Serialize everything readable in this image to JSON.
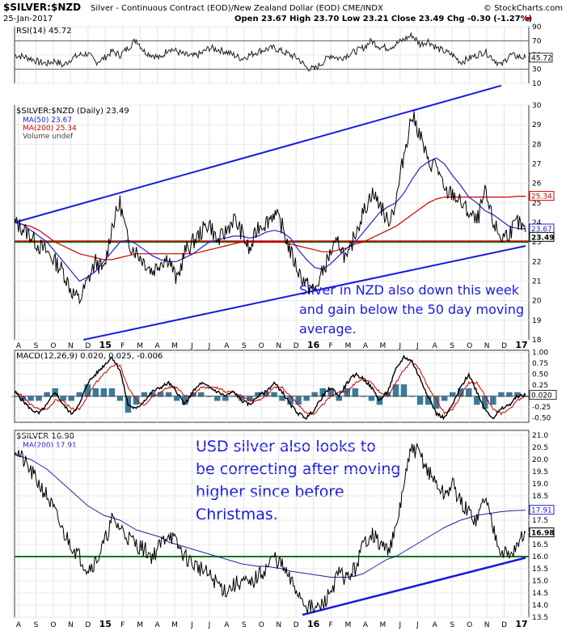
{
  "header": {
    "symbol": "$SILVER:$NZD",
    "description": "Silver - Continuous Contract (EOD)/New Zealand Dollar (EOD) CME/INDX",
    "source": "© StockCharts.com",
    "date": "25-Jan-2017",
    "quote": "Open 23.67  High 23.70  Low 23.21  Close 23.49  Chg -0.30 (-1.27%)"
  },
  "chart_data": [
    {
      "type": "line",
      "name": "rsi-panel",
      "label": "RSI(14) 45.72",
      "current": "45.72",
      "yticks": [
        "90",
        "70",
        "50",
        "30",
        "10"
      ],
      "ylim": [
        10,
        90
      ],
      "levels": [
        70,
        30
      ],
      "x": [
        0,
        10,
        20,
        30,
        40,
        50,
        60,
        70,
        80,
        90,
        100,
        110,
        120,
        130,
        140,
        150,
        160,
        170,
        180,
        190,
        200,
        210,
        220,
        230,
        240,
        250,
        260,
        270,
        280,
        290,
        300,
        310,
        320,
        330,
        340,
        350,
        360,
        370,
        380,
        390,
        400,
        410,
        420,
        430,
        440,
        450,
        460,
        470,
        480,
        490,
        500,
        510,
        520,
        530,
        540,
        550,
        560,
        570,
        580,
        590,
        600,
        610,
        620,
        630
      ],
      "values": [
        50,
        48,
        45,
        40,
        38,
        42,
        35,
        45,
        50,
        52,
        40,
        45,
        55,
        50,
        60,
        72,
        55,
        50,
        45,
        60,
        55,
        50,
        48,
        52,
        60,
        58,
        55,
        50,
        45,
        50,
        55,
        58,
        60,
        55,
        50,
        45,
        32,
        30,
        40,
        50,
        45,
        50,
        55,
        60,
        70,
        62,
        60,
        65,
        72,
        78,
        65,
        70,
        60,
        55,
        50,
        40,
        45,
        50,
        55,
        45,
        35,
        50,
        48,
        46
      ]
    },
    {
      "type": "line",
      "name": "silver-nzd-panel",
      "label": "$SILVER:$NZD (Daily) 23.49",
      "legend": [
        "MA(50) 23.67",
        "MA(200) 25.34",
        "Volume undef"
      ],
      "tag_ma200": "25.34",
      "tag_ma50": "23.67",
      "tag_last": "23.49",
      "yticks": [
        "30",
        "29",
        "28",
        "27",
        "26",
        "25",
        "24",
        "23",
        "22",
        "21",
        "20",
        "19",
        "18"
      ],
      "ylim": [
        18,
        30
      ],
      "annotation": [
        "Silver in NZD also down this week",
        "and gain below the 50 day moving",
        "average."
      ],
      "x": [
        0,
        10,
        20,
        30,
        40,
        50,
        60,
        70,
        80,
        90,
        100,
        110,
        120,
        130,
        140,
        150,
        160,
        170,
        180,
        190,
        200,
        210,
        220,
        230,
        240,
        250,
        260,
        270,
        280,
        290,
        300,
        310,
        320,
        330,
        340,
        350,
        360,
        370,
        380,
        390,
        400,
        410,
        420,
        430,
        440,
        450,
        460,
        470,
        480,
        490,
        500,
        510,
        520,
        530,
        540,
        550,
        560,
        570,
        580,
        590,
        600,
        610,
        620,
        630
      ],
      "close": [
        24.0,
        23.7,
        23.3,
        22.8,
        22.5,
        22.0,
        21.5,
        20.5,
        20.0,
        21.0,
        22.0,
        21.5,
        23.8,
        25.0,
        23.0,
        22.5,
        22.0,
        21.5,
        22.0,
        22.2,
        21.0,
        22.5,
        23.0,
        23.5,
        24.0,
        23.0,
        23.5,
        24.2,
        23.5,
        22.5,
        23.8,
        24.0,
        24.5,
        23.8,
        22.5,
        21.5,
        20.8,
        20.5,
        21.5,
        22.5,
        23.0,
        22.0,
        23.5,
        24.5,
        25.5,
        25.0,
        24.0,
        25.0,
        27.5,
        29.5,
        28.5,
        27.0,
        27.0,
        25.5,
        25.5,
        25.0,
        24.5,
        24.0,
        25.5,
        24.0,
        23.2,
        23.5,
        24.0,
        23.5
      ],
      "ma50": [
        24.0,
        23.9,
        23.6,
        23.3,
        23.0,
        22.5,
        22.0,
        21.5,
        21.0,
        21.2,
        21.5,
        22.0,
        22.5,
        23.0,
        23.1,
        22.9,
        22.6,
        22.3,
        22.1,
        22.0,
        22.0,
        22.2,
        22.4,
        22.7,
        23.0,
        23.1,
        23.2,
        23.3,
        23.3,
        23.2,
        23.3,
        23.5,
        23.6,
        23.5,
        23.2,
        22.6,
        22.1,
        21.7,
        21.6,
        21.9,
        22.3,
        22.7,
        23.0,
        23.5,
        24.0,
        24.5,
        24.8,
        25.0,
        25.5,
        26.2,
        26.8,
        27.1,
        27.3,
        27.0,
        26.4,
        25.9,
        25.3,
        25.0,
        24.6,
        24.4,
        24.1,
        23.8,
        23.7,
        23.67
      ],
      "ma200": [
        24.0,
        23.9,
        23.8,
        23.6,
        23.3,
        23.0,
        22.8,
        22.6,
        22.4,
        22.3,
        22.2,
        22.1,
        22.1,
        22.2,
        22.3,
        22.4,
        22.4,
        22.4,
        22.4,
        22.4,
        22.4,
        22.4,
        22.4,
        22.5,
        22.6,
        22.7,
        22.8,
        22.9,
        23.0,
        23.0,
        23.0,
        23.0,
        23.0,
        23.0,
        22.9,
        22.8,
        22.7,
        22.6,
        22.5,
        22.5,
        22.6,
        22.7,
        22.9,
        23.0,
        23.2,
        23.4,
        23.6,
        23.8,
        24.1,
        24.4,
        24.7,
        25.0,
        25.2,
        25.3,
        25.3,
        25.3,
        25.3,
        25.3,
        25.3,
        25.3,
        25.3,
        25.3,
        25.34,
        25.34
      ]
    },
    {
      "type": "line",
      "name": "macd-panel",
      "label": "MACD(12,26,9) 0.020, 0.025, -0.006",
      "current": "0.020",
      "yticks": [
        "1.00",
        "0.75",
        "0.50",
        "0.25",
        "0.00",
        "-0.25",
        "-0.50"
      ],
      "ylim": [
        -0.6,
        1.05
      ],
      "x": [
        0,
        10,
        20,
        30,
        40,
        50,
        60,
        70,
        80,
        90,
        100,
        110,
        120,
        130,
        140,
        150,
        160,
        170,
        180,
        190,
        200,
        210,
        220,
        230,
        240,
        250,
        260,
        270,
        280,
        290,
        300,
        310,
        320,
        330,
        340,
        350,
        360,
        370,
        380,
        390,
        400,
        410,
        420,
        430,
        440,
        450,
        460,
        470,
        480,
        490,
        500,
        510,
        520,
        530,
        540,
        550,
        560,
        570,
        580,
        590,
        600,
        610,
        620,
        630
      ],
      "macd": [
        0.1,
        -0.1,
        -0.3,
        -0.4,
        -0.2,
        0.1,
        -0.2,
        -0.4,
        -0.2,
        0.3,
        0.5,
        0.7,
        0.9,
        0.6,
        -0.2,
        -0.3,
        -0.1,
        0.1,
        0.2,
        0.3,
        0.1,
        -0.2,
        0.1,
        0.3,
        0.2,
        0.1,
        0.0,
        0.1,
        -0.1,
        -0.2,
        0.0,
        0.1,
        0.3,
        0.1,
        -0.2,
        -0.4,
        -0.5,
        -0.3,
        0.0,
        0.2,
        0.0,
        0.3,
        0.5,
        0.4,
        0.2,
        -0.1,
        0.1,
        0.6,
        0.9,
        0.8,
        0.4,
        0.0,
        -0.4,
        -0.5,
        -0.2,
        0.2,
        0.5,
        0.1,
        -0.3,
        -0.5,
        -0.3,
        -0.2,
        0.0,
        0.02
      ],
      "signal": [
        0.1,
        0.0,
        -0.2,
        -0.3,
        -0.3,
        -0.1,
        -0.1,
        -0.3,
        -0.3,
        0.0,
        0.3,
        0.5,
        0.7,
        0.7,
        0.2,
        -0.1,
        -0.2,
        0.0,
        0.1,
        0.2,
        0.2,
        0.0,
        0.0,
        0.2,
        0.2,
        0.2,
        0.1,
        0.1,
        0.0,
        -0.1,
        -0.1,
        0.0,
        0.2,
        0.2,
        0.0,
        -0.2,
        -0.4,
        -0.4,
        -0.2,
        0.0,
        0.1,
        0.1,
        0.3,
        0.4,
        0.3,
        0.1,
        0.0,
        0.3,
        0.6,
        0.8,
        0.6,
        0.2,
        -0.1,
        -0.4,
        -0.3,
        0.0,
        0.3,
        0.3,
        0.0,
        -0.3,
        -0.4,
        -0.3,
        -0.1,
        0.025
      ]
    },
    {
      "type": "line",
      "name": "silver-usd-panel",
      "label": "$SILVER 16.98",
      "legend": [
        "MA(200) 17.91"
      ],
      "tag_ma200": "17.91",
      "tag_last": "16.98",
      "yticks": [
        "21.0",
        "20.5",
        "20.0",
        "19.5",
        "19.0",
        "18.5",
        "18.0",
        "17.5",
        "17.0",
        "16.5",
        "16.0",
        "15.5",
        "15.0",
        "14.5",
        "14.0",
        "13.5"
      ],
      "ylim": [
        13.5,
        21.2
      ],
      "annotation": [
        "USD silver also looks to",
        "be correcting after moving",
        "higher since before",
        "Christmas."
      ],
      "x": [
        0,
        10,
        20,
        30,
        40,
        50,
        60,
        70,
        80,
        90,
        100,
        110,
        120,
        130,
        140,
        150,
        160,
        170,
        180,
        190,
        200,
        210,
        220,
        230,
        240,
        250,
        260,
        270,
        280,
        290,
        300,
        310,
        320,
        330,
        340,
        350,
        360,
        370,
        380,
        390,
        400,
        410,
        420,
        430,
        440,
        450,
        460,
        470,
        480,
        490,
        500,
        510,
        520,
        530,
        540,
        550,
        560,
        570,
        580,
        590,
        600,
        610,
        620,
        630
      ],
      "close": [
        20.5,
        20.0,
        19.5,
        19.0,
        18.5,
        17.8,
        17.0,
        16.5,
        16.0,
        15.5,
        15.8,
        16.5,
        17.5,
        17.2,
        16.8,
        16.5,
        16.3,
        16.0,
        16.5,
        17.0,
        16.5,
        16.0,
        15.7,
        15.5,
        15.2,
        14.9,
        14.6,
        14.8,
        15.0,
        14.8,
        15.2,
        15.5,
        16.0,
        15.6,
        15.0,
        14.5,
        14.0,
        13.8,
        14.0,
        14.6,
        15.3,
        15.1,
        15.5,
        16.5,
        17.0,
        16.5,
        16.3,
        17.0,
        19.0,
        20.5,
        20.2,
        19.5,
        19.0,
        18.5,
        19.0,
        18.2,
        17.8,
        17.5,
        18.5,
        17.2,
        16.3,
        16.0,
        16.5,
        16.98
      ],
      "ma200": [
        20.2,
        20.1,
        20.0,
        19.8,
        19.6,
        19.3,
        19.0,
        18.7,
        18.4,
        18.1,
        17.9,
        17.7,
        17.6,
        17.5,
        17.3,
        17.1,
        17.0,
        16.9,
        16.8,
        16.6,
        16.5,
        16.4,
        16.3,
        16.2,
        16.1,
        16.0,
        15.9,
        15.8,
        15.7,
        15.65,
        15.6,
        15.6,
        15.55,
        15.5,
        15.4,
        15.35,
        15.3,
        15.25,
        15.2,
        15.15,
        15.15,
        15.15,
        15.2,
        15.3,
        15.5,
        15.7,
        15.9,
        16.0,
        16.2,
        16.4,
        16.6,
        16.8,
        17.0,
        17.2,
        17.35,
        17.5,
        17.6,
        17.7,
        17.75,
        17.8,
        17.85,
        17.88,
        17.9,
        17.91
      ]
    }
  ],
  "xaxis_months": [
    "A",
    "S",
    "O",
    "N",
    "D",
    "15",
    "F",
    "M",
    "A",
    "M",
    "J",
    "J",
    "A",
    "S",
    "O",
    "N",
    "D",
    "16",
    "F",
    "M",
    "A",
    "M",
    "J",
    "J",
    "A",
    "S",
    "O",
    "N",
    "D",
    "17"
  ],
  "colors": {
    "price": "#000000",
    "price_highlight": "#7a0000",
    "ma50": "#2222cc",
    "ma200": "#cc0000",
    "trendline": "#1818e0",
    "support": "#117711",
    "resistance_nzd": "#cc0000",
    "annotation": "#1a1ae6",
    "macd_hist": "#3a7a9a"
  }
}
